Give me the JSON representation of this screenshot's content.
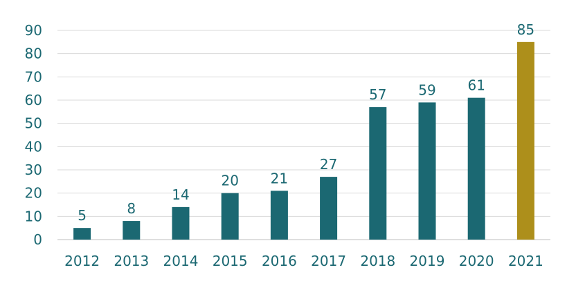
{
  "chart_data": {
    "type": "bar",
    "categories": [
      "2012",
      "2013",
      "2014",
      "2015",
      "2016",
      "2017",
      "2018",
      "2019",
      "2020",
      "2021"
    ],
    "values": [
      5,
      8,
      14,
      20,
      21,
      27,
      57,
      59,
      61,
      85
    ],
    "data_labels": [
      "5",
      "8",
      "14",
      "20",
      "21",
      "27",
      "57",
      "59",
      "61",
      "85"
    ],
    "y_ticks": [
      0,
      10,
      20,
      30,
      40,
      50,
      60,
      70,
      80,
      90
    ],
    "ylim": [
      0,
      90
    ],
    "grid": true,
    "legend": "none",
    "colors": {
      "bar": "#1b6872",
      "highlight_bar": "#ad8f1b",
      "text": "#1b6872",
      "grid": "#d9d9d9"
    },
    "highlight_category": "2021"
  }
}
